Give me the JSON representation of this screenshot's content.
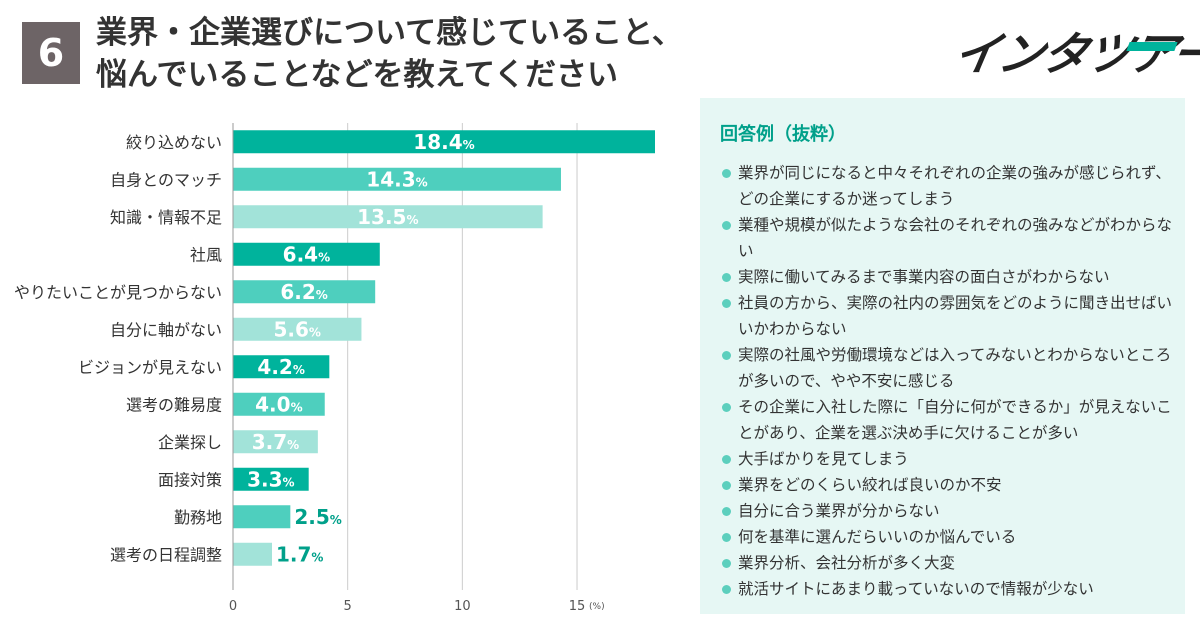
{
  "header": {
    "number": "6",
    "title_line1": "業界・企業選びについて感じていること、",
    "title_line2": "悩んでいることなどを教えてください",
    "logo": "インタツアー"
  },
  "chart_data": {
    "type": "bar",
    "orientation": "horizontal",
    "categories": [
      "絞り込めない",
      "自身とのマッチ",
      "知識・情報不足",
      "社風",
      "やりたいことが見つからない",
      "自分に軸がない",
      "ビジョンが見えない",
      "選考の難易度",
      "企業探し",
      "面接対策",
      "勤務地",
      "選考の日程調整"
    ],
    "values": [
      18.4,
      14.3,
      13.5,
      6.4,
      6.2,
      5.6,
      4.2,
      4.0,
      3.7,
      3.3,
      2.5,
      1.7
    ],
    "value_labels": [
      "18.4",
      "14.3",
      "13.5",
      "6.4",
      "6.2",
      "5.6",
      "4.2",
      "4.0",
      "3.7",
      "3.3",
      "2.5",
      "1.7"
    ],
    "value_suffix": "%",
    "xlim": [
      0,
      18.4
    ],
    "xticks": [
      0,
      5,
      10,
      15
    ],
    "tick_labels": [
      "0",
      "5",
      "10",
      "15"
    ],
    "xunit": "(%)",
    "grid": true,
    "colors": [
      "#00b39c",
      "#4ecfbe",
      "#a2e3d9"
    ]
  },
  "panel": {
    "title": "回答例（抜粋）",
    "items": [
      "業界が同じになると中々それぞれの企業の強みが感じられず、どの企業にするか迷ってしまう",
      "業種や規模が似たような会社のそれぞれの強みなどがわからない",
      "実際に働いてみるまで事業内容の面白さがわからない",
      "社員の方から、実際の社内の雰囲気をどのように聞き出せばいいかわからない",
      "実際の社風や労働環境などは入ってみないとわからないところが多いので、やや不安に感じる",
      "その企業に入社した際に「自分に何ができるか」が見えないことがあり、企業を選ぶ決め手に欠けることが多い",
      "大手ばかりを見てしまう",
      "業界をどのくらい絞れば良いのか不安",
      "自分に合う業界が分からない",
      "何を基準に選んだらいいのか悩んでいる",
      "業界分析、会社分析が多く大変",
      "就活サイトにあまり載っていないので情報が少ない"
    ]
  }
}
